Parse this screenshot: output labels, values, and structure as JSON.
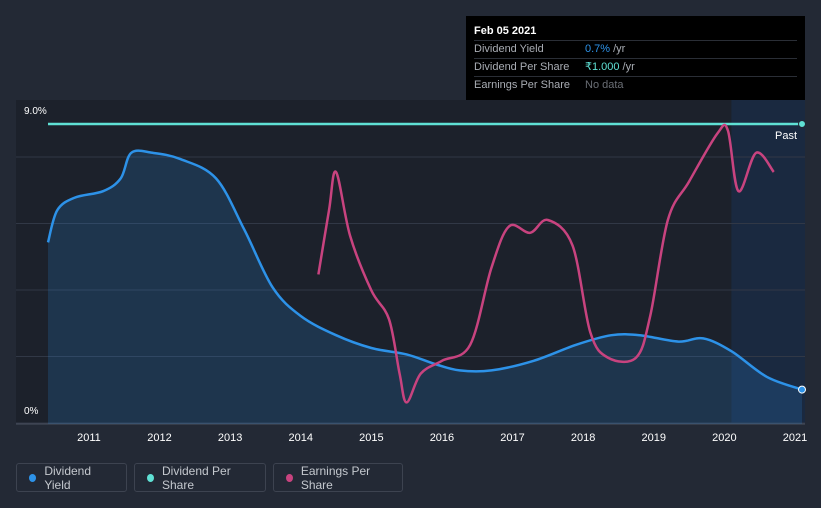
{
  "colors": {
    "background": "#232935",
    "dividend_yield": "#2d92e8",
    "dividend_per_share": "#5fe0d4",
    "earnings_per_share": "#c8437f",
    "earnings_negative": "#e04848",
    "grid": "#313846",
    "forecast_band": "#1a2a44"
  },
  "tooltip": {
    "date": "Feb 05 2021",
    "rows": [
      {
        "label": "Dividend Yield",
        "value": "0.7%",
        "unit": "/yr"
      },
      {
        "label": "Dividend Per Share",
        "value": "₹1.000",
        "unit": "/yr"
      },
      {
        "label": "Earnings Per Share",
        "value": "No data",
        "unit": ""
      }
    ]
  },
  "past_label": "Past",
  "legend": [
    {
      "label": "Dividend Yield",
      "icon": "dot-blue"
    },
    {
      "label": "Dividend Per Share",
      "icon": "dot-teal"
    },
    {
      "label": "Earnings Per Share",
      "icon": "dot-magenta"
    }
  ],
  "chart_data": {
    "type": "line",
    "title": "",
    "xlabel": "",
    "ylabel": "",
    "y_tick_labels": [
      "9.0%",
      "0%"
    ],
    "ylim": [
      0,
      9.0
    ],
    "xlim": [
      2010.4,
      2021.1
    ],
    "x_tick_labels": [
      "2011",
      "2012",
      "2013",
      "2014",
      "2015",
      "2016",
      "2017",
      "2018",
      "2019",
      "2020",
      "2021"
    ],
    "x_ticks": [
      2011,
      2012,
      2013,
      2014,
      2015,
      2016,
      2017,
      2018,
      2019,
      2020,
      2021
    ],
    "grid": true,
    "legend_position": "bottom-left",
    "series": [
      {
        "name": "Dividend Yield",
        "unit": "%",
        "points": [
          [
            2010.42,
            5.3
          ],
          [
            2010.55,
            6.3
          ],
          [
            2010.8,
            6.7
          ],
          [
            2011.2,
            6.9
          ],
          [
            2011.45,
            7.3
          ],
          [
            2011.6,
            8.1
          ],
          [
            2011.9,
            8.1
          ],
          [
            2012.3,
            7.9
          ],
          [
            2012.8,
            7.3
          ],
          [
            2013.2,
            5.7
          ],
          [
            2013.6,
            3.9
          ],
          [
            2014.0,
            3.0
          ],
          [
            2014.5,
            2.4
          ],
          [
            2015.0,
            2.0
          ],
          [
            2015.5,
            1.8
          ],
          [
            2015.9,
            1.5
          ],
          [
            2016.25,
            1.3
          ],
          [
            2016.7,
            1.3
          ],
          [
            2017.3,
            1.6
          ],
          [
            2017.9,
            2.1
          ],
          [
            2018.4,
            2.4
          ],
          [
            2018.8,
            2.4
          ],
          [
            2019.35,
            2.2
          ],
          [
            2019.7,
            2.3
          ],
          [
            2020.1,
            1.9
          ],
          [
            2020.6,
            1.1
          ],
          [
            2021.1,
            0.7
          ]
        ]
      },
      {
        "name": "Dividend Per Share",
        "unit": "₹",
        "points": [
          [
            2010.42,
            9.0
          ],
          [
            2021.1,
            9.0
          ]
        ]
      },
      {
        "name": "Earnings Per Share",
        "points": [
          [
            2014.25,
            4.3
          ],
          [
            2014.4,
            6.3
          ],
          [
            2014.5,
            7.5
          ],
          [
            2014.7,
            5.5
          ],
          [
            2015.0,
            3.8
          ],
          [
            2015.25,
            2.9
          ],
          [
            2015.4,
            1.2
          ],
          [
            2015.5,
            0.3
          ],
          [
            2015.7,
            1.2
          ],
          [
            2016.0,
            1.6
          ],
          [
            2016.4,
            2.1
          ],
          [
            2016.7,
            4.5
          ],
          [
            2016.95,
            5.8
          ],
          [
            2017.25,
            5.6
          ],
          [
            2017.5,
            6.0
          ],
          [
            2017.85,
            5.2
          ],
          [
            2018.1,
            2.5
          ],
          [
            2018.35,
            1.7
          ],
          [
            2018.75,
            1.7
          ],
          [
            2018.95,
            3.0
          ],
          [
            2019.2,
            6.0
          ],
          [
            2019.5,
            7.2
          ],
          [
            2019.9,
            8.7
          ],
          [
            2020.05,
            8.8
          ],
          [
            2020.2,
            6.9
          ],
          [
            2020.45,
            8.1
          ],
          [
            2020.7,
            7.5
          ]
        ]
      }
    ]
  }
}
